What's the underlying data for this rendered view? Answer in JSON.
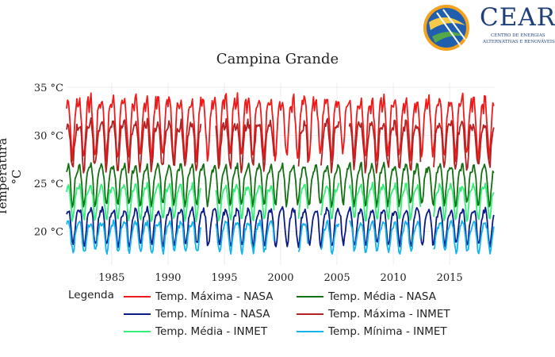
{
  "logo": {
    "wordmark": "CEAR",
    "subtitle_1": "CENTRO DE ENERGIAS",
    "subtitle_2": "ALTERNATIVAS E RENOVÁVEIS"
  },
  "colors": {
    "max_nasa": "#f01a1a",
    "med_nasa": "#157013",
    "min_nasa": "#0b1a86",
    "max_inmet": "#b22222",
    "med_inmet": "#33ee77",
    "min_inmet": "#12b4ee",
    "grid": "#ececec",
    "text": "#222222"
  },
  "chart_data": {
    "type": "line",
    "title": "Campina Grande",
    "xlabel": "",
    "ylabel": "Temperatura °C",
    "x_start": 1981.0,
    "x_end": 2018.92,
    "x_ticks": [
      1985,
      1990,
      1995,
      2000,
      2005,
      2010,
      2015
    ],
    "xlim": [
      1981.0,
      2019.0
    ],
    "ylim": [
      16.5,
      35.5
    ],
    "y_ticks": [
      20,
      25,
      30,
      35
    ],
    "y_tick_labels": [
      "20 °C",
      "25 °C",
      "30 °C",
      "35 °C"
    ],
    "grid": true,
    "legend_title": "Legenda",
    "legend_placement": "bottom",
    "sampling": "monthly",
    "series": [
      {
        "name": "Temp. Máxima - NASA",
        "color_key": "max_nasa",
        "start": 1981.0,
        "monthly_profile": [
          32.8,
          33.6,
          33.9,
          32.5,
          31.0,
          29.0,
          27.8,
          28.4,
          30.0,
          32.0,
          33.0,
          33.5
        ]
      },
      {
        "name": "Temp. Média - NASA",
        "color_key": "med_nasa",
        "start": 1981.0,
        "monthly_profile": [
          26.4,
          26.8,
          26.9,
          26.2,
          25.3,
          23.8,
          22.8,
          23.0,
          24.0,
          25.2,
          26.0,
          26.3
        ]
      },
      {
        "name": "Temp. Mínima - NASA",
        "color_key": "min_nasa",
        "start": 1981.0,
        "monthly_profile": [
          21.9,
          22.2,
          22.3,
          22.0,
          21.3,
          19.9,
          18.8,
          18.6,
          19.2,
          20.3,
          21.2,
          21.7
        ]
      },
      {
        "name": "Temp. Máxima - INMET",
        "color_key": "max_inmet",
        "start": 1981.0,
        "gaps": [
          [
            1993.0,
            1994.2
          ],
          [
            1999.5,
            2001.5
          ],
          [
            2002.5,
            2003.5
          ],
          [
            2005.2,
            2006.0
          ],
          [
            2012.5,
            2013.5
          ]
        ],
        "monthly_profile": [
          30.8,
          31.2,
          31.3,
          30.6,
          29.3,
          27.6,
          26.6,
          26.9,
          28.3,
          29.8,
          30.6,
          30.9
        ]
      },
      {
        "name": "Temp. Média - INMET",
        "color_key": "med_inmet",
        "start": 1981.0,
        "gaps": [
          [
            1993.0,
            1994.2
          ],
          [
            1999.5,
            2001.5
          ],
          [
            2002.5,
            2003.5
          ],
          [
            2005.2,
            2006.0
          ],
          [
            2012.5,
            2013.5
          ]
        ],
        "monthly_profile": [
          24.4,
          24.7,
          24.8,
          24.3,
          23.4,
          22.3,
          21.3,
          21.4,
          22.3,
          23.5,
          24.1,
          24.3
        ]
      },
      {
        "name": "Temp. Mínima - INMET",
        "color_key": "min_inmet",
        "start": 1981.0,
        "gaps": [
          [
            1993.0,
            1994.2
          ],
          [
            1999.5,
            2001.5
          ],
          [
            2002.5,
            2003.5
          ],
          [
            2005.2,
            2006.0
          ],
          [
            2012.5,
            2013.5
          ]
        ],
        "monthly_profile": [
          20.6,
          20.8,
          20.9,
          20.7,
          20.1,
          19.0,
          18.1,
          17.9,
          18.3,
          19.3,
          20.0,
          20.4
        ]
      }
    ]
  }
}
